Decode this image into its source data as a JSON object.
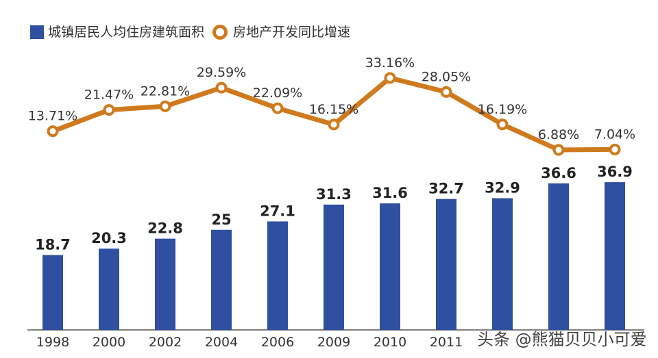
{
  "chart_data": {
    "type": "bar+line",
    "categories": [
      "1998",
      "2000",
      "2002",
      "2004",
      "2006",
      "2009",
      "2010",
      "2011",
      "",
      "",
      ""
    ],
    "series": [
      {
        "name": "城镇居民人均住房建筑面积",
        "type": "bar",
        "color": "#2f4fa0",
        "values": [
          18.7,
          20.3,
          22.8,
          25,
          27.1,
          31.3,
          31.6,
          32.7,
          32.9,
          36.6,
          36.9
        ],
        "labels": [
          "18.7",
          "20.3",
          "22.8",
          "25",
          "27.1",
          "31.3",
          "31.6",
          "32.7",
          "32.9",
          "36.6",
          "36.9"
        ]
      },
      {
        "name": "房地产开发同比增速",
        "type": "line",
        "color": "#d07a1e",
        "values": [
          13.71,
          21.47,
          22.81,
          29.59,
          22.09,
          16.15,
          33.16,
          28.05,
          16.19,
          6.88,
          7.04
        ],
        "labels": [
          "13.71%",
          "21.47%",
          "22.81%",
          "29.59%",
          "22.09%",
          "16.15%",
          "33.16%",
          "28.05%",
          "16.19%",
          "6.88%",
          "7.04%"
        ]
      }
    ],
    "legend": "top-left",
    "grid": false
  },
  "watermark": "头条 @熊猫贝贝小可爱"
}
